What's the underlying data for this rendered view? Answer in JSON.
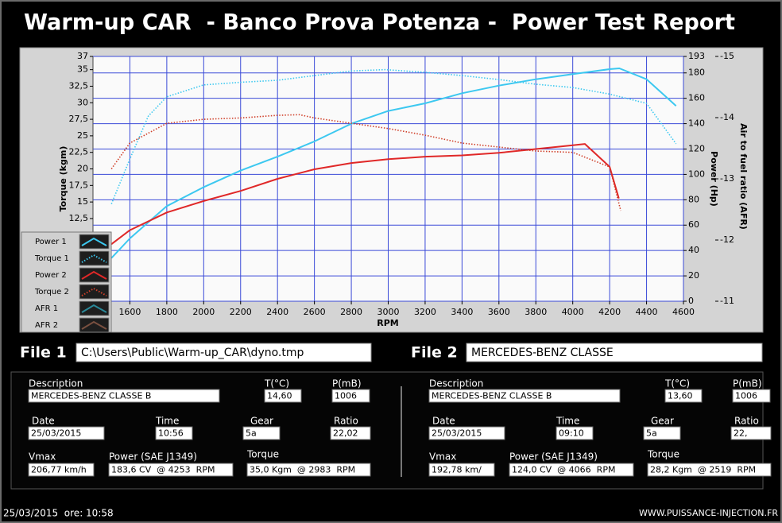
{
  "header": {
    "title": "Warm-up CAR  - Banco Prova Potenza -  Power Test Report"
  },
  "chart_data": {
    "type": "line",
    "x_label": "RPM",
    "y_label": "Torque (kgm)",
    "y2_label": "Power (Hp)",
    "y3_label": "Air to fuel ratio (AFR)",
    "xlim": [
      1400,
      4600
    ],
    "xticks": [
      1600,
      1800,
      2000,
      2200,
      2400,
      2600,
      2800,
      3000,
      3200,
      3400,
      3600,
      3800,
      4000,
      4200,
      4400,
      4600
    ],
    "ylim": [
      0,
      37
    ],
    "yticks": [
      37,
      35,
      {
        "value": 32.5,
        "label": "32,5"
      },
      30,
      {
        "value": 27.5,
        "label": "27,5"
      },
      25,
      {
        "value": 22.5,
        "label": "22,5"
      },
      20,
      {
        "value": 17.5,
        "label": "17,5"
      },
      15,
      {
        "value": 12.5,
        "label": "12,5"
      }
    ],
    "y2lim": [
      0,
      193
    ],
    "y2ticks": [
      0,
      20,
      40,
      60,
      80,
      100,
      120,
      140,
      160,
      180,
      193
    ],
    "y3lim": [
      -11,
      -15
    ],
    "y3ticks": [
      -11,
      -12,
      -13,
      -14,
      -15
    ],
    "grid": true,
    "legend": "lower left",
    "series": [
      {
        "name": "Power 1",
        "color": "#3cc8f0",
        "line_style": "solid",
        "axis": "y2",
        "x": [
          1500,
          1600,
          1800,
          2000,
          2200,
          2400,
          2600,
          2800,
          3000,
          3200,
          3400,
          3600,
          3800,
          4000,
          4200,
          4253,
          4400,
          4560
        ],
        "values": [
          34,
          49.5,
          75,
          90,
          103,
          114,
          126,
          140,
          150,
          156,
          164,
          170,
          175,
          179,
          183,
          183.6,
          175,
          154
        ]
      },
      {
        "name": "Torque 1",
        "color": "#3cc8f0",
        "line_style": "dotted",
        "axis": "y",
        "x": [
          1500,
          1600,
          1700,
          1800,
          2000,
          2200,
          2400,
          2600,
          2800,
          2983,
          3200,
          3400,
          3600,
          3800,
          4000,
          4200,
          4400,
          4560
        ],
        "values": [
          14.7,
          21.5,
          28,
          30.9,
          32.7,
          33.1,
          33.4,
          34.1,
          34.8,
          35.0,
          34.6,
          34.1,
          33.5,
          32.8,
          32.3,
          31.3,
          29.9,
          23.8
        ]
      },
      {
        "name": "Power 2",
        "color": "#e02828",
        "line_style": "solid",
        "axis": "y2",
        "x": [
          1500,
          1600,
          1800,
          2000,
          2200,
          2400,
          2600,
          2800,
          3000,
          3200,
          3400,
          3600,
          3800,
          4000,
          4066,
          4200,
          4250
        ],
        "values": [
          45,
          56,
          70,
          79,
          87,
          96.5,
          104,
          109,
          112,
          114,
          115,
          117,
          120,
          123,
          124.0,
          106,
          81
        ]
      },
      {
        "name": "Torque 2",
        "color": "#d0402a",
        "line_style": "dotted",
        "axis": "y",
        "x": [
          1500,
          1600,
          1800,
          2000,
          2200,
          2400,
          2519,
          2600,
          2800,
          3000,
          3200,
          3400,
          3600,
          3800,
          4000,
          4200,
          4260
        ],
        "values": [
          20,
          23.9,
          26.9,
          27.5,
          27.7,
          28.1,
          28.2,
          27.7,
          26.9,
          26.1,
          25.1,
          23.9,
          23.3,
          22.7,
          22.5,
          20.3,
          13.7
        ]
      },
      {
        "name": "AFR 1",
        "color": "#2a8a9a",
        "line_style": "solid",
        "axis": "y3",
        "x": [],
        "values": []
      },
      {
        "name": "AFR 2",
        "color": "#7a5040",
        "line_style": "solid",
        "axis": "y3",
        "x": [],
        "values": []
      }
    ]
  },
  "files": [
    {
      "label": "File 1",
      "value": "C:\\Users\\Public\\Warm-up_CAR\\dyno.tmp"
    },
    {
      "label": "File 2",
      "value": "MERCEDES-BENZ CLASSE"
    }
  ],
  "panels": [
    {
      "fields": [
        {
          "label": "Description",
          "value": "MERCEDES-BENZ CLASSE B"
        },
        {
          "label": "T(°C)",
          "value": "14,60"
        },
        {
          "label": "P(mB)",
          "value": "1006"
        },
        {
          "label": "Date",
          "value": "25/03/2015"
        },
        {
          "label": "Time",
          "value": "10:56"
        },
        {
          "label": "Gear",
          "value": "5a"
        },
        {
          "label": "Ratio",
          "value": "22,02"
        },
        {
          "label": "Vmax",
          "value": "206,77 km/h"
        },
        {
          "label": "Power (SAE J1349)",
          "value": "183,6 CV  @ 4253  RPM"
        },
        {
          "label": "Torque",
          "value": "35,0 Kgm  @ 2983  RPM"
        }
      ]
    },
    {
      "fields": [
        {
          "label": "Description",
          "value": "MERCEDES-BENZ CLASSE B"
        },
        {
          "label": "T(°C)",
          "value": "13,60"
        },
        {
          "label": "P(mB)",
          "value": "1006"
        },
        {
          "label": "Date",
          "value": "25/03/2015"
        },
        {
          "label": "Time",
          "value": "09:10"
        },
        {
          "label": "Gear",
          "value": "5a"
        },
        {
          "label": "Ratio",
          "value": "22,"
        },
        {
          "label": "Vmax",
          "value": "192,78 km/"
        },
        {
          "label": "Power (SAE J1349)",
          "value": "124,0 CV  @ 4066  RPM"
        },
        {
          "label": "Torque",
          "value": "28,2 Kgm  @ 2519  RPM"
        }
      ]
    }
  ],
  "footer": {
    "left": "25/03/2015  ore: 10:58",
    "right": "WWW.PUISSANCE-INJECTION.FR"
  }
}
